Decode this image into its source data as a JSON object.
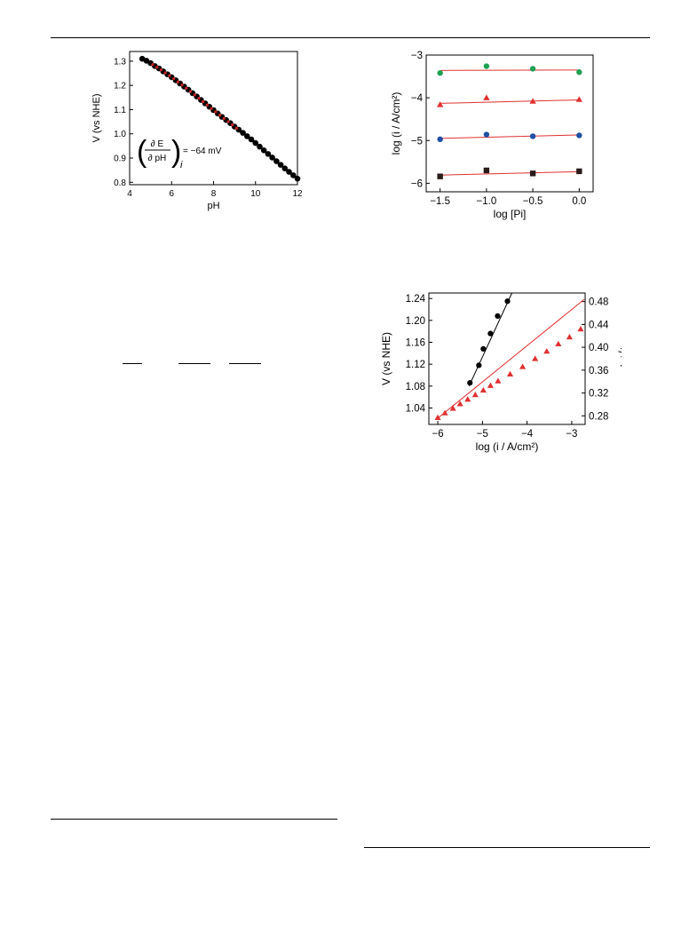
{
  "chart_data": [
    {
      "type": "scatter",
      "xlabel": "pH",
      "ylabel": "V  (vs NHE)",
      "xlim": [
        4,
        12
      ],
      "ylim": [
        0.79,
        1.34
      ],
      "xticks": [
        4,
        6,
        8,
        10,
        12
      ],
      "yticks": [
        0.8,
        0.9,
        1.0,
        1.1,
        1.2,
        1.3
      ],
      "ytick_labels": [
        "0.8",
        "0.9",
        "1.0",
        "1.1",
        "1.2",
        "1.3"
      ],
      "annotation": {
        "numerator": "∂ E",
        "denominator": "∂ pH",
        "subscript": "i",
        "value": "= −64 mV"
      },
      "series": [
        {
          "marker": "circle",
          "color": "#000000",
          "fit_color": "#cc2222",
          "fit_range": [
            5,
            9.2
          ],
          "x": [
            4.6,
            4.8,
            5.0,
            5.2,
            5.4,
            5.6,
            5.8,
            6.0,
            6.2,
            6.4,
            6.6,
            6.8,
            7.0,
            7.2,
            7.4,
            7.6,
            7.8,
            8.0,
            8.2,
            8.4,
            8.6,
            8.8,
            9.0,
            9.2,
            9.4,
            9.6,
            9.8,
            10.0,
            10.2,
            10.4,
            10.6,
            10.8,
            11.0,
            11.2,
            11.4,
            11.6,
            11.8,
            12.0
          ],
          "y": [
            1.31,
            1.302,
            1.292,
            1.28,
            1.27,
            1.258,
            1.246,
            1.234,
            1.221,
            1.208,
            1.195,
            1.182,
            1.168,
            1.154,
            1.14,
            1.126,
            1.112,
            1.098,
            1.084,
            1.07,
            1.057,
            1.044,
            1.03,
            1.017,
            1.004,
            0.99,
            0.977,
            0.962,
            0.947,
            0.932,
            0.917,
            0.902,
            0.887,
            0.872,
            0.857,
            0.843,
            0.829,
            0.815
          ]
        }
      ]
    },
    {
      "type": "scatter",
      "xlabel": "log [Pi]",
      "ylabel": "log (i / A/cm²)",
      "xlim": [
        -1.65,
        0.15
      ],
      "ylim": [
        -6.2,
        -3
      ],
      "xticks": [
        -1.5,
        -1.0,
        -0.5,
        0.0
      ],
      "xtick_labels": [
        "−1.5",
        "−1.0",
        "−0.5",
        "0.0"
      ],
      "yticks": [
        -6,
        -5,
        -4,
        -3
      ],
      "ytick_labels": [
        "−6",
        "−5",
        "−4",
        "−3"
      ],
      "series": [
        {
          "marker": "circle",
          "color": "#1fa050",
          "x": [
            -1.5,
            -1.0,
            -0.5,
            0.0
          ],
          "y": [
            -3.42,
            -3.26,
            -3.32,
            -3.4
          ],
          "fit": [
            -3.36,
            -3.35
          ]
        },
        {
          "marker": "triangle",
          "color": "#e03030",
          "x": [
            -1.5,
            -1.0,
            -0.5,
            0.0
          ],
          "y": [
            -4.16,
            -4.0,
            -4.08,
            -4.04
          ],
          "fit": [
            -4.13,
            -4.05
          ]
        },
        {
          "marker": "circle",
          "color": "#1f4fa5",
          "x": [
            -1.5,
            -1.0,
            -0.5,
            0.0
          ],
          "y": [
            -4.97,
            -4.86,
            -4.9,
            -4.88
          ],
          "fit": [
            -4.95,
            -4.87
          ]
        },
        {
          "marker": "square",
          "color": "#2a1a1a",
          "x": [
            -1.5,
            -1.0,
            -0.5,
            0.0
          ],
          "y": [
            -5.84,
            -5.7,
            -5.77,
            -5.72
          ],
          "fit": [
            -5.81,
            -5.73
          ]
        }
      ],
      "fit_color": "#e03030"
    },
    {
      "type": "scatter",
      "xlabel": "log (i / A/cm²)",
      "ylabel": "V (vs NHE)",
      "y2label": "η / V",
      "xlim": [
        -6.2,
        -2.7
      ],
      "ylim": [
        1.01,
        1.25
      ],
      "y2lim": [
        0.265,
        0.495
      ],
      "xticks": [
        -6,
        -5,
        -4,
        -3
      ],
      "xtick_labels": [
        "−6",
        "−5",
        "−4",
        "−3"
      ],
      "yticks": [
        1.04,
        1.08,
        1.12,
        1.16,
        1.2,
        1.24
      ],
      "ytick_labels": [
        "1.04",
        "1.08",
        "1.12",
        "1.16",
        "1.20",
        "1.24"
      ],
      "y2ticks": [
        0.28,
        0.32,
        0.36,
        0.4,
        0.44,
        0.48
      ],
      "y2tick_labels": [
        "0.28",
        "0.32",
        "0.36",
        "0.40",
        "0.44",
        "0.48"
      ],
      "series": [
        {
          "marker": "circle",
          "color": "#000000",
          "axis": "left",
          "x": [
            -5.28,
            -5.08,
            -4.98,
            -4.82,
            -4.66,
            -4.44
          ],
          "y": [
            1.086,
            1.118,
            1.148,
            1.176,
            1.208,
            1.235
          ],
          "fit_x": [
            -5.3,
            -4.34
          ],
          "fit_y": [
            1.08,
            1.25
          ]
        },
        {
          "marker": "triangle",
          "color": "#e03030",
          "axis": "right",
          "x": [
            -6.0,
            -5.84,
            -5.66,
            -5.5,
            -5.33,
            -5.16,
            -4.98,
            -4.82,
            -4.65,
            -4.38,
            -4.1,
            -3.82,
            -3.56,
            -3.3,
            -3.05,
            -2.8
          ],
          "y": [
            0.277,
            0.285,
            0.293,
            0.301,
            0.309,
            0.317,
            0.325,
            0.333,
            0.341,
            0.353,
            0.366,
            0.38,
            0.393,
            0.406,
            0.418,
            0.432
          ],
          "fit_x": [
            -6.0,
            -2.72
          ],
          "fit_y": [
            0.276,
            0.484
          ]
        }
      ]
    }
  ]
}
